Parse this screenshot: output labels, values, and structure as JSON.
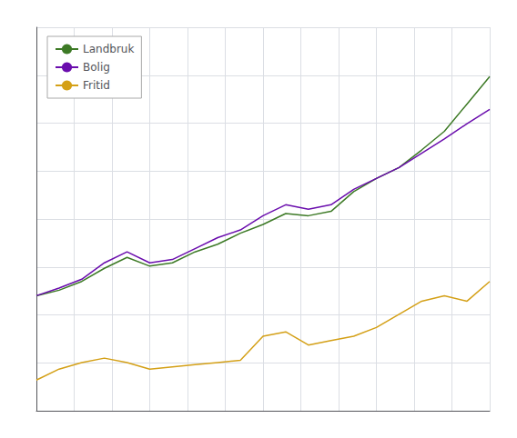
{
  "chart_data": {
    "type": "line",
    "x": [
      0,
      1,
      2,
      3,
      4,
      5,
      6,
      7,
      8,
      9,
      10,
      11,
      12,
      13,
      14,
      15,
      16,
      17,
      18,
      19,
      20
    ],
    "series": [
      {
        "name": "Landbruk",
        "color": "#3d7a26",
        "values": [
          1.55,
          1.6,
          1.68,
          1.8,
          1.9,
          1.82,
          1.85,
          1.95,
          2.02,
          2.12,
          2.2,
          2.3,
          2.28,
          2.32,
          2.5,
          2.62,
          2.72,
          2.88,
          3.05,
          3.3,
          3.55
        ]
      },
      {
        "name": "Bolig",
        "color": "#6a0dad",
        "values": [
          1.55,
          1.62,
          1.7,
          1.85,
          1.95,
          1.85,
          1.88,
          1.98,
          2.08,
          2.15,
          2.28,
          2.38,
          2.34,
          2.38,
          2.52,
          2.62,
          2.72,
          2.85,
          2.98,
          3.12,
          3.25
        ]
      },
      {
        "name": "Fritid",
        "color": "#d4a017",
        "values": [
          0.78,
          0.88,
          0.94,
          0.98,
          0.94,
          0.88,
          0.9,
          0.92,
          0.94,
          0.96,
          1.18,
          1.22,
          1.1,
          1.14,
          1.18,
          1.26,
          1.38,
          1.5,
          1.55,
          1.5,
          1.68
        ]
      }
    ],
    "xlim": [
      0,
      20
    ],
    "xticks": [
      0,
      1.6666666666666667,
      3.3333333333333335,
      5,
      6.666666666666667,
      8.333333333333334,
      10,
      11.666666666666666,
      13.333333333333334,
      15,
      16.666666666666668,
      18.333333333333332,
      20
    ],
    "ylim": [
      0.5,
      4.0
    ],
    "yticks": [
      0.5,
      0.9375,
      1.375,
      1.8125,
      2.25,
      2.6875,
      3.125,
      3.5625,
      4.0
    ],
    "grid": true,
    "legend": "upper left",
    "tick_labels": false
  }
}
